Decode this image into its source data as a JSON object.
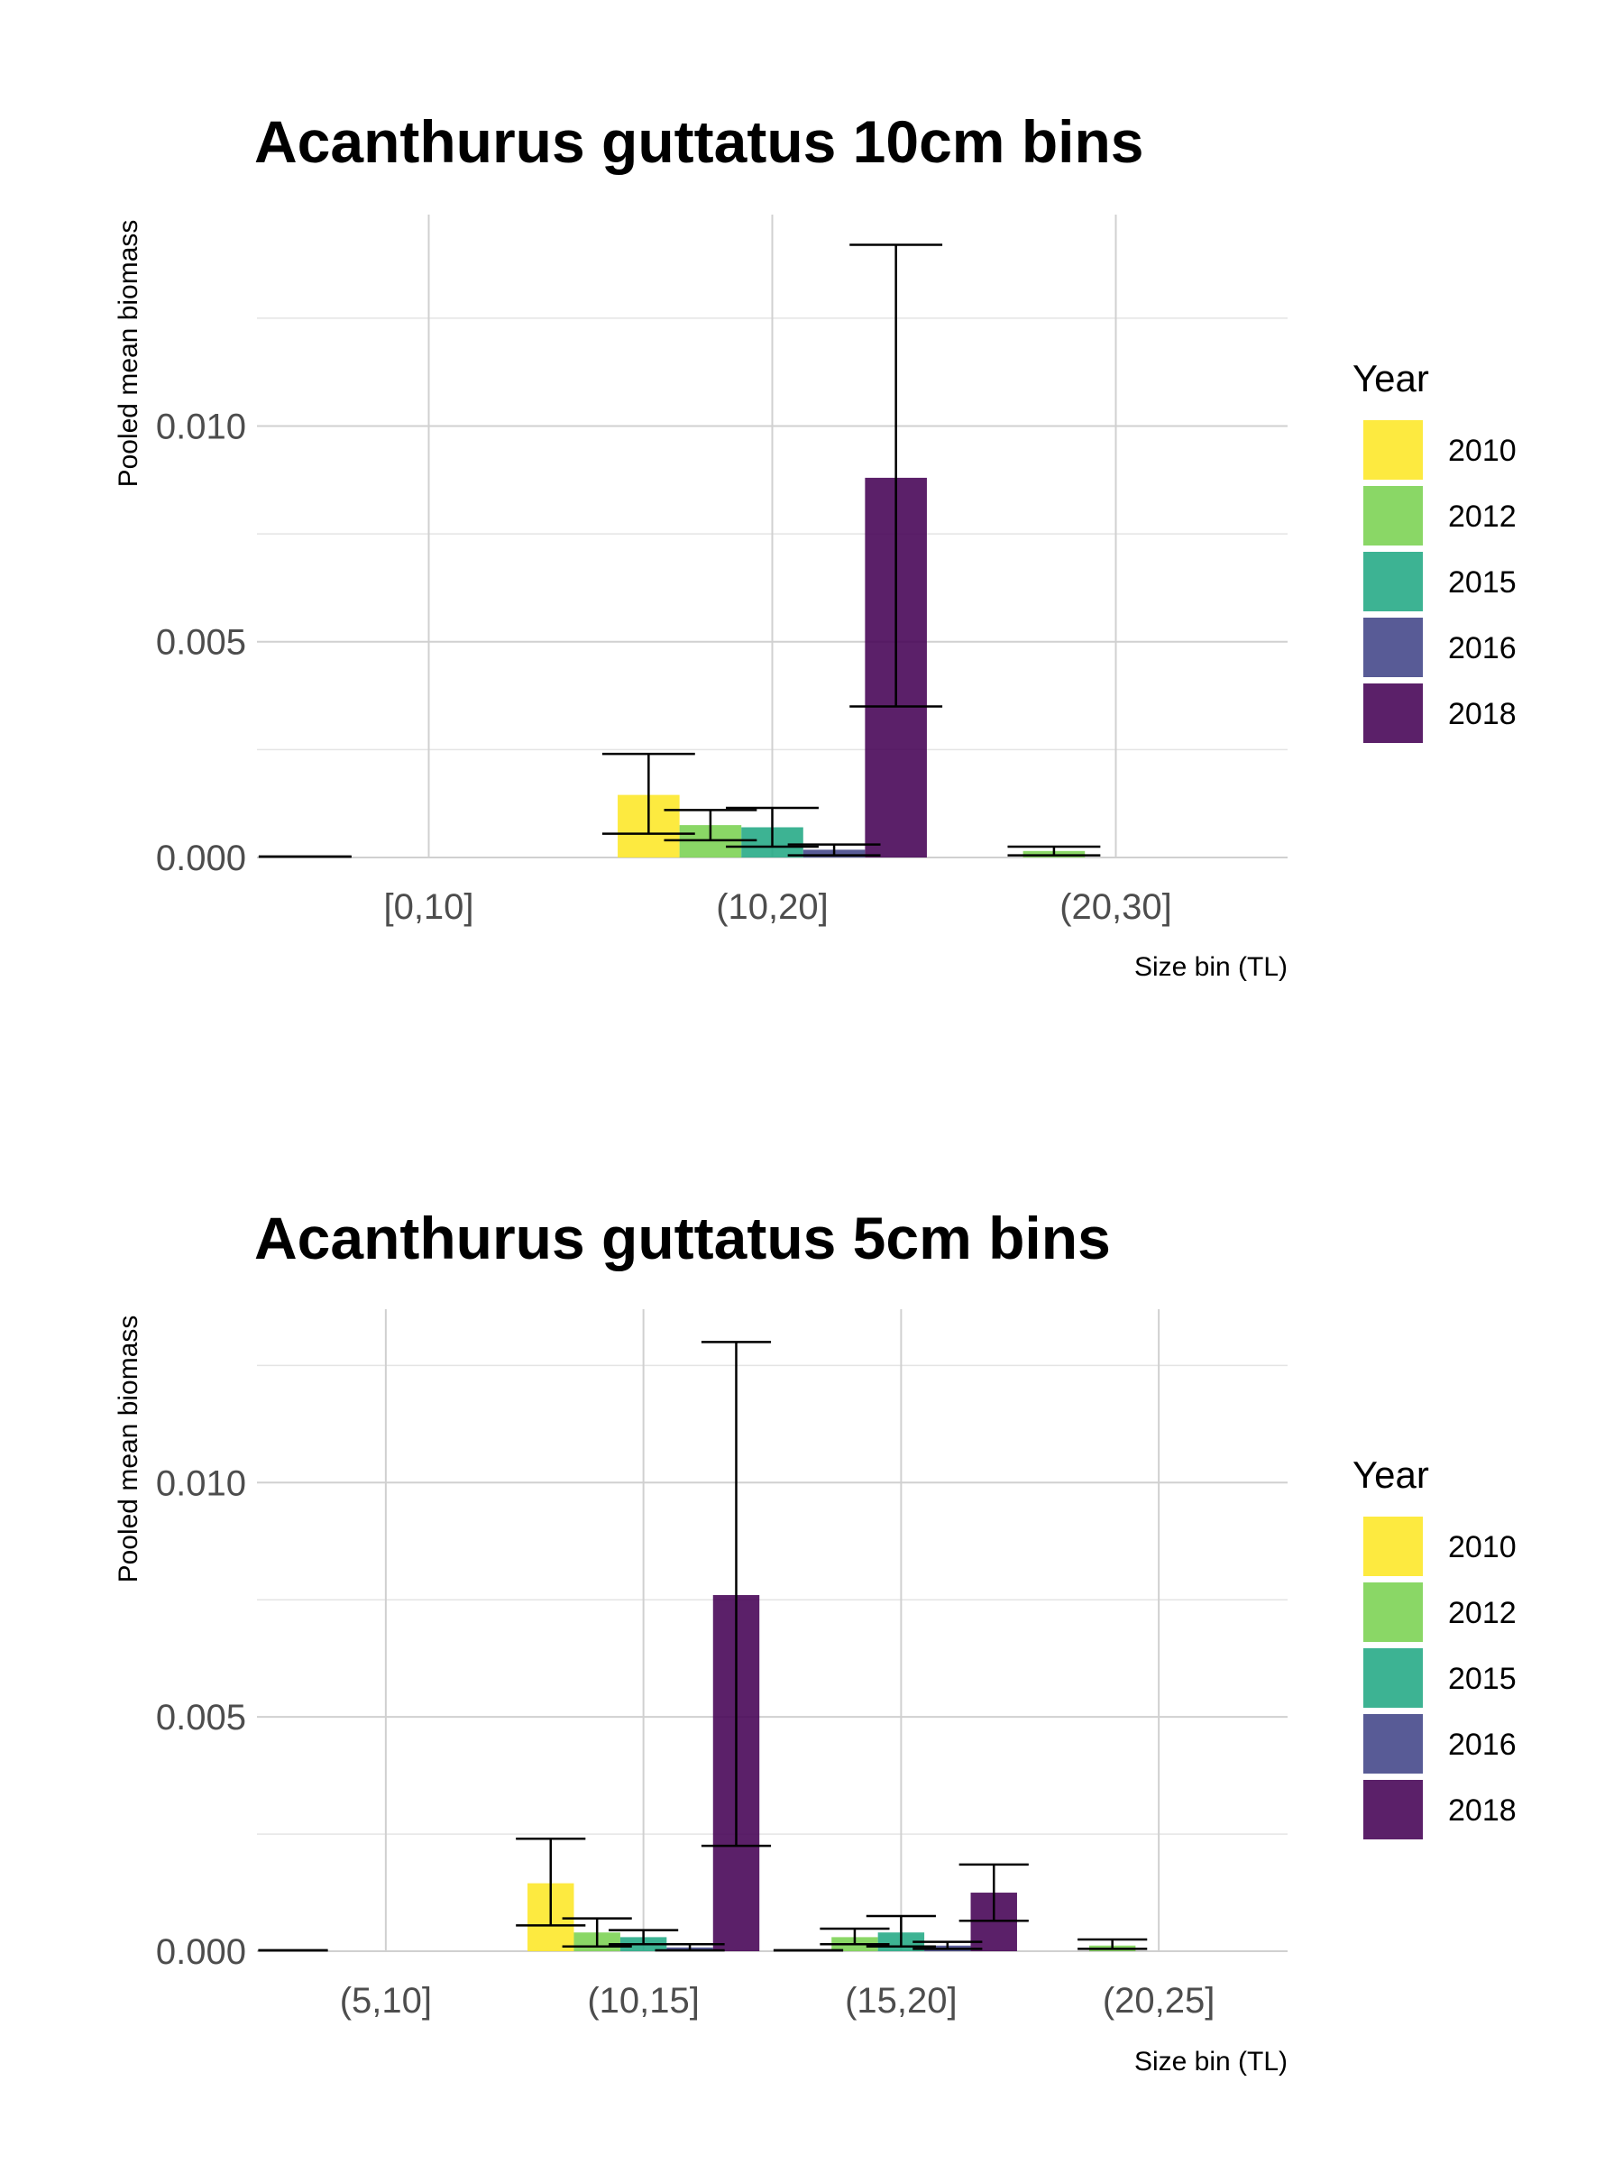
{
  "colors": {
    "2010": "#FDE725",
    "2012": "#7AD151",
    "2015": "#22A884",
    "2016": "#414487",
    "2018": "#440154"
  },
  "chart_data": [
    {
      "type": "bar",
      "title": "Acanthurus guttatus 10cm bins",
      "xlabel": "Size bin (TL)",
      "ylabel": "Pooled mean biomass",
      "ylim": [
        0,
        0.0149
      ],
      "yticks": [
        "0.000",
        "0.005",
        "0.010"
      ],
      "ytick_values": [
        0,
        0.005,
        0.01
      ],
      "grid": true,
      "legend_title": "Year",
      "legend_position": "right",
      "categories": [
        "[0,10]",
        "(10,20]",
        "(20,30]"
      ],
      "series": [
        {
          "name": "2010",
          "values": [
            2e-05,
            0.00145,
            0.0
          ],
          "err_low": [
            2e-05,
            0.00055,
            0.0
          ],
          "err_high": [
            2e-05,
            0.0024,
            0.0
          ]
        },
        {
          "name": "2012",
          "values": [
            0.0,
            0.00075,
            0.00015
          ],
          "err_low": [
            0.0,
            0.0004,
            5e-05
          ],
          "err_high": [
            0.0,
            0.0011,
            0.00025
          ]
        },
        {
          "name": "2015",
          "values": [
            0.0,
            0.0007,
            0.0
          ],
          "err_low": [
            0.0,
            0.00025,
            0.0
          ],
          "err_high": [
            0.0,
            0.00115,
            0.0
          ]
        },
        {
          "name": "2016",
          "values": [
            0.0,
            0.00018,
            0.0
          ],
          "err_low": [
            0.0,
            5e-05,
            0.0
          ],
          "err_high": [
            0.0,
            0.0003,
            0.0
          ]
        },
        {
          "name": "2018",
          "values": [
            0.0,
            0.0088,
            0.0
          ],
          "err_low": [
            0.0,
            0.0035,
            0.0
          ],
          "err_high": [
            0.0,
            0.0142,
            0.0
          ]
        }
      ]
    },
    {
      "type": "bar",
      "title": "Acanthurus guttatus 5cm bins",
      "xlabel": "Size bin (TL)",
      "ylabel": "Pooled mean biomass",
      "ylim": [
        0,
        0.0137
      ],
      "yticks": [
        "0.000",
        "0.005",
        "0.010"
      ],
      "ytick_values": [
        0,
        0.005,
        0.01
      ],
      "grid": true,
      "legend_title": "Year",
      "legend_position": "right",
      "categories": [
        "(5,10]",
        "(10,15]",
        "(15,20]",
        "(20,25]"
      ],
      "series": [
        {
          "name": "2010",
          "values": [
            2e-05,
            0.00145,
            2e-05,
            0.0
          ],
          "err_low": [
            2e-05,
            0.00055,
            2e-05,
            0.0
          ],
          "err_high": [
            2e-05,
            0.0024,
            2e-05,
            0.0
          ]
        },
        {
          "name": "2012",
          "values": [
            0.0,
            0.0004,
            0.0003,
            0.00012
          ],
          "err_low": [
            0.0,
            0.0001,
            0.00015,
            5e-05
          ],
          "err_high": [
            0.0,
            0.0007,
            0.00048,
            0.00025
          ]
        },
        {
          "name": "2015",
          "values": [
            0.0,
            0.0003,
            0.0004,
            0.0
          ],
          "err_low": [
            0.0,
            0.00015,
            0.0001,
            0.0
          ],
          "err_high": [
            0.0,
            0.00045,
            0.00075,
            0.0
          ]
        },
        {
          "name": "2016",
          "values": [
            0.0,
            8e-05,
            0.00012,
            0.0
          ],
          "err_low": [
            0.0,
            2e-05,
            5e-05,
            0.0
          ],
          "err_high": [
            0.0,
            0.00015,
            0.0002,
            0.0
          ]
        },
        {
          "name": "2018",
          "values": [
            0.0,
            0.0076,
            0.00125,
            0.0
          ],
          "err_low": [
            0.0,
            0.00225,
            0.00065,
            0.0
          ],
          "err_high": [
            0.0,
            0.013,
            0.00185,
            0.0
          ]
        }
      ]
    }
  ]
}
